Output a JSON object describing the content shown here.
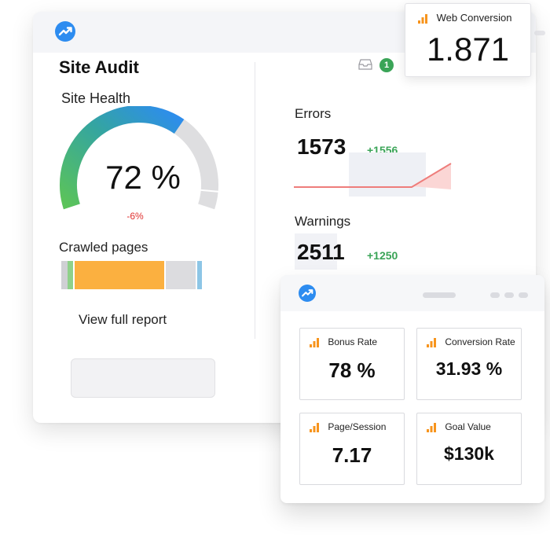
{
  "site_audit": {
    "title": "Site Audit",
    "site_health_label": "Site Health",
    "site_health_value": "72 %",
    "site_health_fraction": 0.72,
    "site_health_delta": "-6%",
    "crawled_pages_label": "Crawled pages",
    "crawled_segments": [
      {
        "color": "#cfd0d4",
        "fraction": 0.04
      },
      {
        "color": "#8fd18a",
        "fraction": 0.03
      },
      {
        "color": "#ffffff",
        "fraction": 0.01
      },
      {
        "color": "#fbb040",
        "fraction": 0.55
      },
      {
        "color": "#ffffff",
        "fraction": 0.01
      },
      {
        "color": "#dcdcdf",
        "fraction": 0.18
      },
      {
        "color": "#ffffff",
        "fraction": 0.01
      },
      {
        "color": "#8dc6e6",
        "fraction": 0.03
      }
    ],
    "view_report_label": "View full report"
  },
  "notifications": {
    "count": "1"
  },
  "errors": {
    "label": "Errors",
    "value": "1573",
    "delta": "+1556"
  },
  "warnings": {
    "label": "Warnings",
    "value": "2511",
    "delta": "+1250"
  },
  "web_conversion": {
    "label": "Web Conversion",
    "value": "1.871"
  },
  "metrics": [
    {
      "label": "Bonus Rate",
      "value": "78 %"
    },
    {
      "label": "Conversion Rate",
      "value": "31.93 %"
    },
    {
      "label": "Page/Session",
      "value": "7.17"
    },
    {
      "label": "Goal Value",
      "value": "$130k"
    }
  ],
  "colors": {
    "accent_blue": "#2d8cf0",
    "positive_green": "#3aa457",
    "negative_red": "#e0312f",
    "bars_orange": "#f7941d",
    "spark_red": "#ee7d7b"
  },
  "icons": [
    "app-logo-icon",
    "inbox-icon",
    "bar-chart-icon"
  ]
}
